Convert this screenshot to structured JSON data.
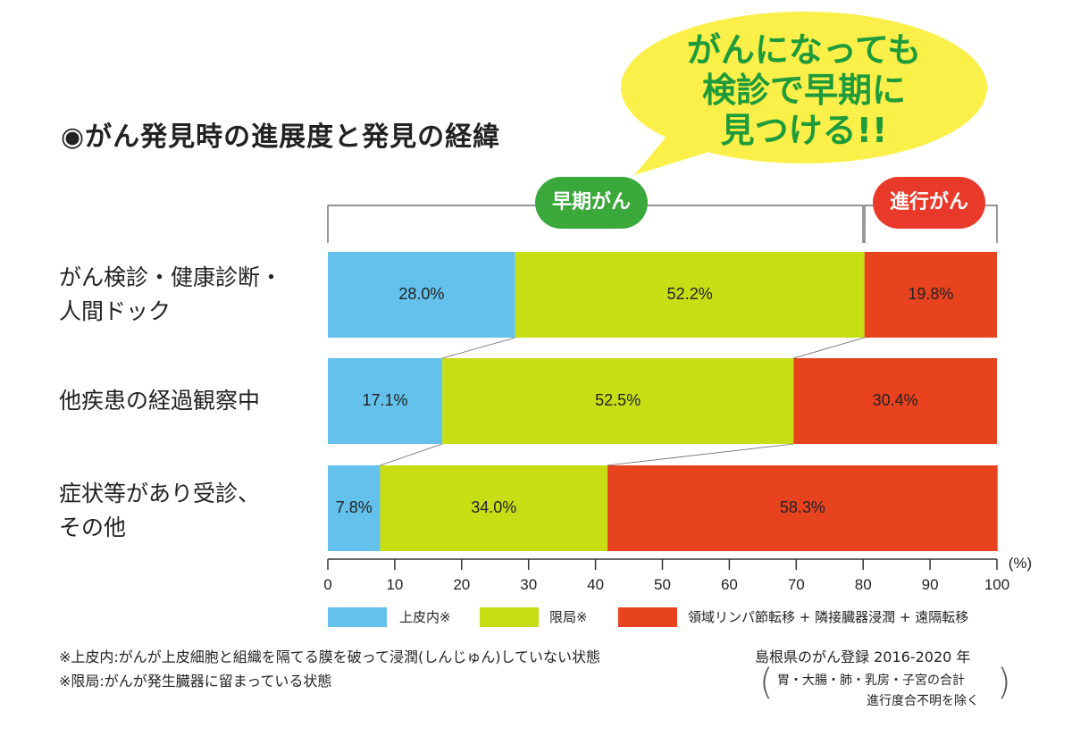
{
  "title": "◉がん発見時の進展度と発見の経緯",
  "bubble": {
    "lines": [
      "がんになっても",
      "検診で早期に",
      "見つける!!"
    ]
  },
  "groups": {
    "early": "早期がん",
    "advanced": "進行がん"
  },
  "row_labels": [
    [
      "がん検診・健康診断・",
      "人間ドック"
    ],
    [
      "他疾患の経過観察中"
    ],
    [
      "症状等があり受診、",
      "その他"
    ]
  ],
  "unit": "(%)",
  "legend": [
    {
      "label": "上皮内※",
      "color": "#63c1ec"
    },
    {
      "label": "限局※",
      "color": "#c7dd14"
    },
    {
      "label": "領域リンパ節転移 + 隣接臓器浸潤 + 遠隔転移",
      "color": "#e8431f"
    }
  ],
  "notes": [
    "※上皮内:がんが上皮細胞と組織を隔てる膜を破って浸潤(しんじゅん)していない状態",
    "※限局:がんが発生臓器に留まっている状態"
  ],
  "source": "島根県のがん登録 2016-2020 年",
  "source_sub": [
    "胃・大腸・肺・乳房・子宮の合計",
    "進行度合不明を除く"
  ],
  "chart_data": {
    "type": "bar",
    "orientation": "horizontal",
    "stacked": true,
    "categories": [
      "がん検診・健康診断・人間ドック",
      "他疾患の経過観察中",
      "症状等があり受診、その他"
    ],
    "series": [
      {
        "name": "上皮内※",
        "values": [
          28.0,
          17.1,
          7.8
        ],
        "labels": [
          "28.0%",
          "17.1%",
          "7.8%"
        ],
        "color": "#63c1ec"
      },
      {
        "name": "限局※",
        "values": [
          52.2,
          52.5,
          34.0
        ],
        "labels": [
          "52.2%",
          "52.5%",
          "34.0%"
        ],
        "color": "#c7dd14"
      },
      {
        "name": "領域リンパ節転移 + 隣接臓器浸潤 + 遠隔転移",
        "values": [
          19.8,
          30.4,
          58.3
        ],
        "labels": [
          "19.8%",
          "30.4%",
          "58.3%"
        ],
        "color": "#e8431f"
      }
    ],
    "xlim": [
      0,
      100
    ],
    "xticks": [
      0,
      10,
      20,
      30,
      40,
      50,
      60,
      70,
      80,
      90,
      100
    ],
    "xlabel": "(%)",
    "grid": false
  }
}
